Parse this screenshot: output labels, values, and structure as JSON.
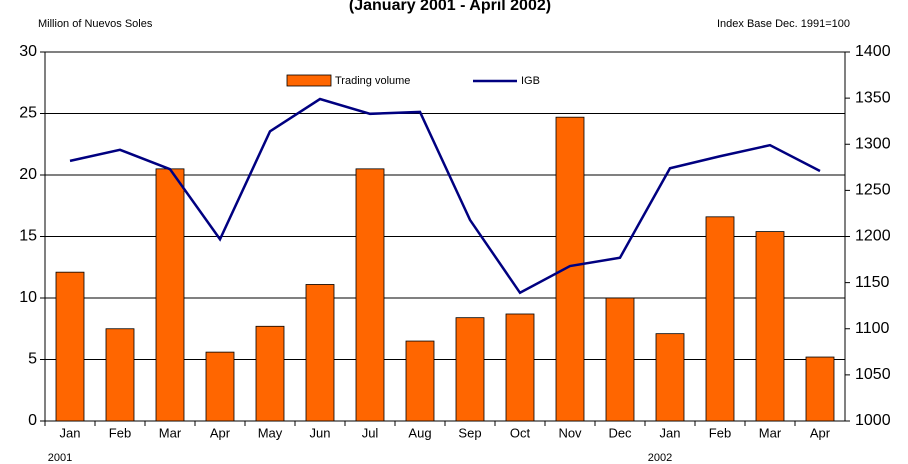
{
  "chart_data": {
    "type": "bar_line",
    "title": "(January 2001 - April 2002)",
    "y_label": "Million of Nuevos Soles",
    "y2_label": "Index Base Dec. 1991=100",
    "categories": [
      "Jan",
      "Feb",
      "Mar",
      "Apr",
      "May",
      "Jun",
      "Jul",
      "Aug",
      "Sep",
      "Oct",
      "Nov",
      "Dec",
      "Jan",
      "Feb",
      "Mar",
      "Apr"
    ],
    "category_years": [
      "2001",
      null,
      null,
      null,
      null,
      null,
      null,
      null,
      null,
      null,
      null,
      null,
      "2002",
      null,
      null,
      null
    ],
    "series": [
      {
        "name": "Trading volume",
        "type": "bar",
        "color": "#ff6600",
        "values": [
          12.1,
          7.5,
          20.5,
          5.6,
          7.7,
          11.1,
          20.5,
          6.5,
          8.4,
          8.7,
          24.7,
          10.0,
          7.1,
          16.6,
          15.4,
          5.2
        ]
      },
      {
        "name": "IGB",
        "type": "line",
        "axis": "y2",
        "color": "#000080",
        "values": [
          1282,
          1294,
          1273,
          1197,
          1314,
          1349,
          1333,
          1335,
          1218,
          1139,
          1168,
          1177,
          1274,
          1287,
          1299,
          1271
        ]
      }
    ],
    "ylim": [
      0,
      30
    ],
    "yticks": [
      0,
      5,
      10,
      15,
      20,
      25,
      30
    ],
    "y2lim": [
      1000,
      1400
    ],
    "y2ticks": [
      1000,
      1050,
      1100,
      1150,
      1200,
      1250,
      1300,
      1350,
      1400
    ],
    "grid": true,
    "legend": "top"
  }
}
